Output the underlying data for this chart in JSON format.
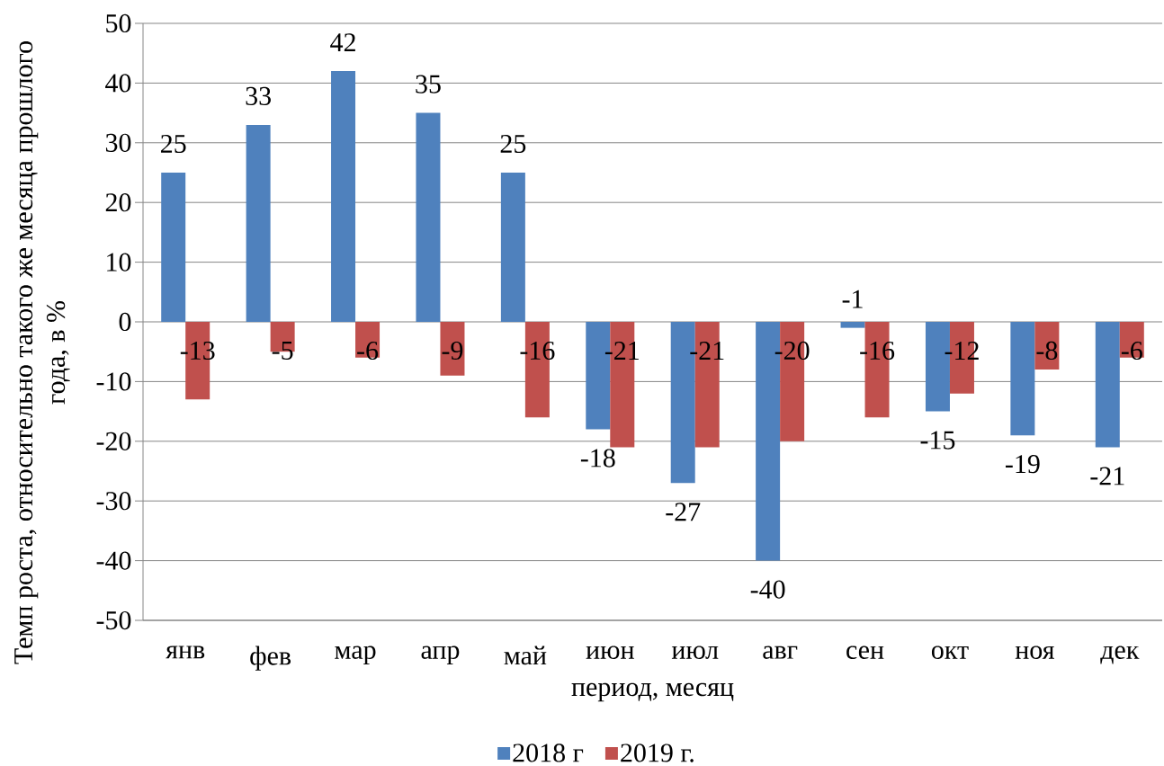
{
  "chart_data": {
    "type": "bar",
    "xlabel": "период, месяц",
    "ylabel": "Темп роста, относительно такого же месяца прошлого года, в %",
    "categories": [
      "янв",
      "фев",
      "мар",
      "апр",
      "май",
      "июн",
      "июл",
      "авг",
      "сен",
      "окт",
      "ноя",
      "дек"
    ],
    "series": [
      {
        "name": "2018 г",
        "color": "#4f81bd",
        "values": [
          25,
          33,
          42,
          35,
          25,
          -18,
          -27,
          -40,
          -1,
          -15,
          -19,
          -21
        ]
      },
      {
        "name": "2019 г.",
        "color": "#c0504d",
        "values": [
          -13,
          -5,
          -6,
          -9,
          -16,
          -21,
          -21,
          -20,
          -16,
          -12,
          -8,
          -6
        ]
      }
    ],
    "ylim": [
      -50,
      50
    ],
    "yticks": [
      -50,
      -40,
      -30,
      -20,
      -10,
      0,
      10,
      20,
      30,
      40,
      50
    ],
    "grid": "y",
    "legend": "bottom",
    "data_labels": true
  }
}
